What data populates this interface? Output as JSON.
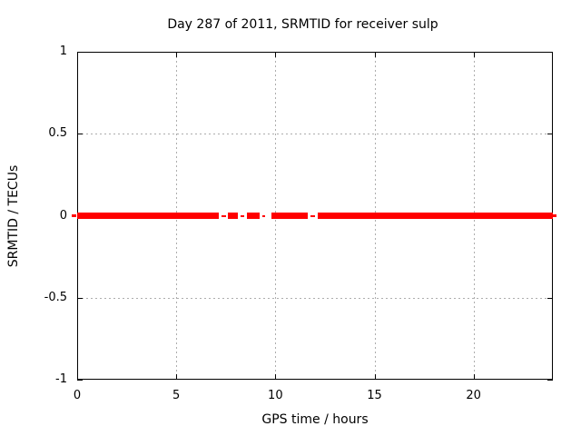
{
  "title": "Day 287 of 2011, SRMTID for receiver sulp",
  "chart_data": {
    "type": "line",
    "title": "Day 287 of 2011, SRMTID for receiver sulp",
    "xlabel": "GPS time / hours",
    "ylabel": "SRMTID / TECUs",
    "xlim": [
      0,
      24
    ],
    "ylim": [
      -1,
      1
    ],
    "xticks": [
      0,
      5,
      10,
      15,
      20
    ],
    "yticks": [
      1,
      0.5,
      0,
      -0.5,
      -1
    ],
    "grid": {
      "x": [
        5,
        10,
        15,
        20
      ],
      "y": [
        0.5,
        -0.5
      ],
      "style": "dotted"
    },
    "legend": "none",
    "series": [
      {
        "name": "SRMTID",
        "value": 0,
        "color": "#ff0000",
        "segments_hours_thick": [
          [
            0,
            7.15
          ],
          [
            7.6,
            8.1
          ],
          [
            8.55,
            9.2
          ],
          [
            9.8,
            11.65
          ],
          [
            12.15,
            24
          ]
        ],
        "segments_hours_thin": [
          [
            7.3,
            7.5
          ],
          [
            8.25,
            8.45
          ],
          [
            9.35,
            9.5
          ],
          [
            11.75,
            12.0
          ]
        ],
        "edge_overshoot_hours": [
          [
            -0.28,
            -0.06
          ],
          [
            24.0,
            24.18
          ]
        ]
      }
    ],
    "colors": {
      "line": "#ff0000",
      "grid": "#adadad",
      "axis": "#000000",
      "background": "#ffffff"
    }
  }
}
